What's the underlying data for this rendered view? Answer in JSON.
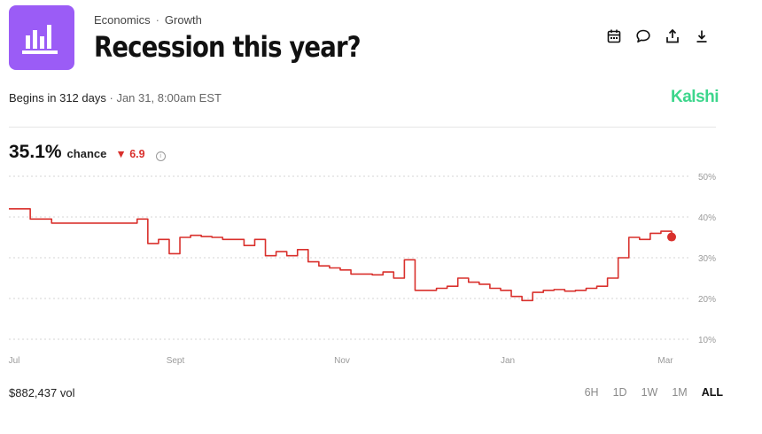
{
  "header": {
    "category": "Economics",
    "separator": "·",
    "subcategory": "Growth",
    "title": "Recession this year?"
  },
  "toolbar": {
    "icons": [
      "calendar-icon",
      "comment-icon",
      "share-icon",
      "download-icon"
    ]
  },
  "meta": {
    "begins": "Begins in 312 days",
    "separator": "·",
    "date": "Jan 31, 8:00am EST"
  },
  "brand": "Kalshi",
  "summary": {
    "chance_value": "35.1%",
    "chance_label": "chance",
    "delta_arrow": "▼",
    "delta": "6.9",
    "info_icon": "i"
  },
  "colors": {
    "accent": "#9b5cf6",
    "line": "#d9302c",
    "brand": "#3dd68c"
  },
  "chart_data": {
    "type": "line",
    "x_labels": [
      "Jul",
      "Sept",
      "Nov",
      "Jan",
      "Mar"
    ],
    "y_ticks": [
      "50%",
      "40%",
      "30%",
      "20%",
      "10%"
    ],
    "ylim": [
      10,
      50
    ],
    "grid": true,
    "series": [
      {
        "values": [
          42,
          42,
          39.5,
          39.5,
          38.5,
          38.5,
          38.5,
          38.5,
          38.5,
          38.5,
          38.5,
          38.5,
          39.5,
          33.5,
          34.5,
          31,
          35,
          35.5,
          35.2,
          35,
          34.5,
          34.5,
          33,
          34.5,
          30.5,
          31.5,
          30.5,
          32,
          29,
          28,
          27.5,
          27,
          26,
          26,
          25.8,
          26.5,
          25,
          29.5,
          22,
          22,
          22.5,
          23,
          25,
          24,
          23.5,
          22.5,
          22,
          20.5,
          19.5,
          21.5,
          22,
          22.2,
          21.8,
          22,
          22.5,
          23,
          25,
          30,
          35,
          34.5,
          36,
          36.5,
          35.1
        ]
      }
    ]
  },
  "footer": {
    "volume": "$882,437 vol",
    "ranges": [
      "6H",
      "1D",
      "1W",
      "1M",
      "ALL"
    ],
    "active_range": "ALL"
  }
}
